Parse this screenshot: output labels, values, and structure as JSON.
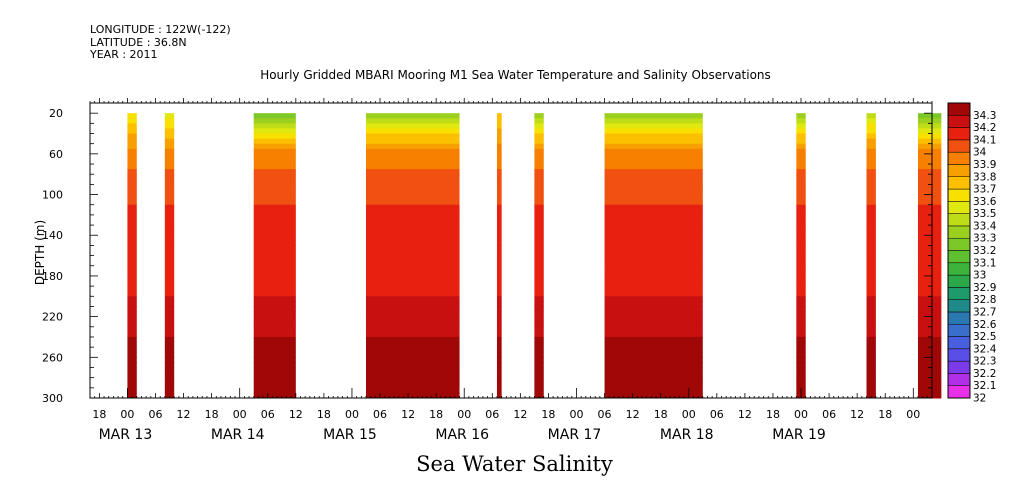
{
  "header": {
    "longitude": "LONGITUDE : 122W(-122)",
    "latitude": "LATITUDE : 36.8N",
    "year": "YEAR : 2011"
  },
  "chart_data": {
    "type": "heatmap",
    "title": "Hourly Gridded MBARI Mooring M1 Sea Water Temperature and Salinity Observations",
    "subtitle": "Sea Water Salinity",
    "xlabel": "",
    "ylabel": "DEPTH (m)",
    "x_start": "MAR 12 16:00",
    "x_end": "MAR 20 04:00",
    "xlim_hours_from_mar13_00": [
      -8,
      172
    ],
    "ylim": [
      300,
      10
    ],
    "y_ticks": [
      20,
      60,
      100,
      140,
      180,
      220,
      260,
      300
    ],
    "x_hour_ticks": [
      "18",
      "00",
      "06",
      "12",
      "18",
      "00",
      "06",
      "12",
      "18",
      "00",
      "06",
      "12",
      "18",
      "00",
      "06",
      "12",
      "18",
      "00",
      "06",
      "12",
      "18",
      "00",
      "06",
      "12",
      "18",
      "00",
      "06",
      "12",
      "18",
      "00"
    ],
    "day_labels": [
      "MAR 13",
      "MAR 14",
      "MAR 15",
      "MAR 16",
      "MAR 17",
      "MAR 18",
      "MAR 19"
    ],
    "colorbar": {
      "levels": [
        32,
        32.1,
        32.2,
        32.3,
        32.4,
        32.5,
        32.6,
        32.7,
        32.8,
        32.9,
        33,
        33.1,
        33.2,
        33.3,
        33.4,
        33.5,
        33.6,
        33.7,
        33.8,
        33.9,
        34,
        34.1,
        34.2,
        34.3
      ],
      "colors": [
        "#e830e8",
        "#b030e8",
        "#7a3ce8",
        "#5a4ee8",
        "#4a5ee0",
        "#3a6ecc",
        "#2a78b0",
        "#1f8a8a",
        "#1f9a6a",
        "#2aa84a",
        "#3cb43c",
        "#5ec030",
        "#7cc828",
        "#9cd020",
        "#bedc18",
        "#e0e810",
        "#f8e000",
        "#fcc000",
        "#f8a000",
        "#f88000",
        "#f05010",
        "#e82010",
        "#c81010",
        "#a00808"
      ]
    },
    "data_blocks": [
      {
        "start_h": 0,
        "end_h": 2,
        "surface": 33.6
      },
      {
        "start_h": 8,
        "end_h": 10,
        "surface": 33.5
      },
      {
        "start_h": 27,
        "end_h": 36,
        "surface": 33.2
      },
      {
        "start_h": 51,
        "end_h": 71,
        "surface": 33.3
      },
      {
        "start_h": 79,
        "end_h": 80,
        "surface": 33.7
      },
      {
        "start_h": 87,
        "end_h": 89,
        "surface": 33.3
      },
      {
        "start_h": 102,
        "end_h": 123,
        "surface": 33.3
      },
      {
        "start_h": 143,
        "end_h": 145,
        "surface": 33.3
      },
      {
        "start_h": 158,
        "end_h": 160,
        "surface": 33.4
      },
      {
        "start_h": 169,
        "end_h": 174,
        "surface": 33.2
      }
    ],
    "grid": false,
    "legend": "right"
  }
}
